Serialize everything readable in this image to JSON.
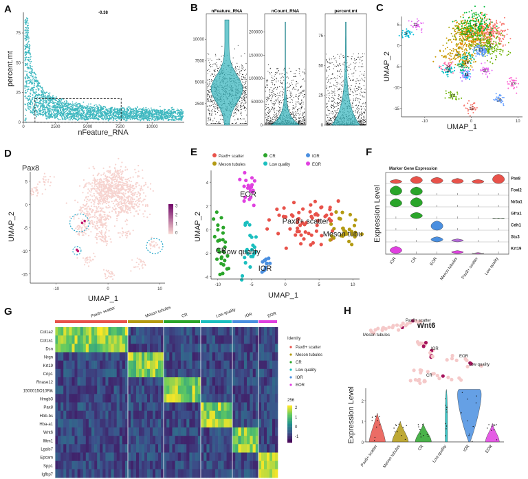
{
  "panels": {
    "A": "A",
    "B": "B",
    "C": "C",
    "D": "D",
    "E": "E",
    "F": "F",
    "G": "G",
    "H": "H"
  },
  "colors": {
    "teal": "#3fb8c0",
    "pax8_scatter": "#e8524a",
    "meson_tubules": "#b39a12",
    "cr": "#2aa52a",
    "low_quality": "#1bbfbf",
    "ior": "#4a8fe0",
    "eor": "#e040e0"
  },
  "chart_data": [
    {
      "panel": "A",
      "type": "scatter",
      "title": "-0.38",
      "xlabel": "nFeature_RNA",
      "ylabel": "percent.mt",
      "xticks": [
        "0",
        "2500",
        "5000",
        "7500",
        "10000"
      ],
      "yticks": [
        "0",
        "25",
        "50",
        "75"
      ],
      "xlim": [
        0,
        12500
      ],
      "ylim": [
        0,
        90
      ],
      "points": [
        [
          150,
          85
        ],
        [
          400,
          60
        ],
        [
          600,
          45
        ],
        [
          900,
          35
        ],
        [
          1200,
          28
        ],
        [
          1600,
          22
        ],
        [
          2100,
          18
        ],
        [
          2700,
          15
        ],
        [
          3400,
          13
        ],
        [
          4200,
          11
        ],
        [
          5200,
          9
        ],
        [
          6300,
          8
        ],
        [
          7500,
          7
        ],
        [
          8800,
          6
        ],
        [
          10000,
          5
        ],
        [
          11200,
          4
        ],
        [
          12300,
          3
        ]
      ],
      "annotation": "dashed selection box"
    },
    {
      "panel": "B",
      "type": "violin",
      "series": [
        {
          "name": "nFeature_RNA",
          "yticks": [
            "2500",
            "5000",
            "7500",
            "10000"
          ],
          "ylim": [
            0,
            12500
          ]
        },
        {
          "name": "nCount_RNA",
          "yticks": [
            "0",
            "50000",
            "100000",
            "150000",
            "200000"
          ],
          "ylim": [
            0,
            230000
          ]
        },
        {
          "name": "percent.mt",
          "yticks": [
            "0",
            "25",
            "50",
            "75"
          ],
          "ylim": [
            0,
            90
          ]
        }
      ]
    },
    {
      "panel": "C",
      "type": "scatter",
      "xlabel": "UMAP_1",
      "ylabel": "UMAP_2",
      "xticks": [
        "-10",
        "0",
        "10"
      ],
      "yticks": [
        "-15",
        "-10",
        "-5",
        "0",
        "5"
      ],
      "xlim": [
        -15,
        11
      ],
      "ylim": [
        -17,
        7
      ],
      "clusters": [
        {
          "label": "0",
          "x": 4,
          "y": 3
        },
        {
          "label": "1",
          "x": 0,
          "y": 3
        },
        {
          "label": "2",
          "x": -3,
          "y": -2
        },
        {
          "label": "3",
          "x": -1,
          "y": 3
        },
        {
          "label": "4",
          "x": 4,
          "y": 0
        },
        {
          "label": "5",
          "x": 1,
          "y": 5
        },
        {
          "label": "6",
          "x": -2,
          "y": -5
        },
        {
          "label": "7",
          "x": -1,
          "y": -3
        },
        {
          "label": "8",
          "x": -14,
          "y": 3
        },
        {
          "label": "9",
          "x": -1,
          "y": -7
        },
        {
          "label": "10",
          "x": 2,
          "y": -1
        },
        {
          "label": "11",
          "x": -1,
          "y": -7
        },
        {
          "label": "12",
          "x": -12,
          "y": 5
        },
        {
          "label": "13",
          "x": 9,
          "y": -9
        },
        {
          "label": "14",
          "x": -5,
          "y": -5
        },
        {
          "label": "15",
          "x": 0,
          "y": -15
        },
        {
          "label": "16",
          "x": -1,
          "y": -4
        },
        {
          "label": "17",
          "x": -4,
          "y": -12
        },
        {
          "label": "18",
          "x": -5,
          "y": -6
        },
        {
          "label": "19",
          "x": 6,
          "y": -13
        },
        {
          "label": "20",
          "x": 3,
          "y": -6
        }
      ]
    },
    {
      "panel": "D",
      "type": "scatter",
      "title": "Pax8",
      "xlabel": "UMAP_1",
      "ylabel": "UMAP_2",
      "xticks": [
        "-10",
        "0",
        "10"
      ],
      "yticks": [
        "-15",
        "-10",
        "-5",
        "0",
        "5"
      ],
      "xlim": [
        -15,
        11
      ],
      "ylim": [
        -17,
        7
      ],
      "colorbar": {
        "ticks": [
          "0",
          "1",
          "2",
          "3"
        ],
        "range": [
          0,
          3
        ]
      }
    },
    {
      "panel": "E",
      "type": "scatter",
      "xlabel": "UMAP_1",
      "ylabel": "UMAP_2",
      "xticks": [
        "-10",
        "-5",
        "0",
        "5",
        "10"
      ],
      "yticks": [
        "-4",
        "-2",
        "0",
        "2",
        "4"
      ],
      "xlim": [
        -11,
        11
      ],
      "ylim": [
        -4.2,
        5
      ],
      "legend": [
        "Pax8+ scatter",
        "CR",
        "IOR",
        "Meson tubules",
        "Low quality",
        "EOR"
      ],
      "labels": [
        {
          "text": "EOR",
          "x": -5.5,
          "y": 2.8
        },
        {
          "text": "Pax8+ scatter",
          "x": 3,
          "y": 0.5
        },
        {
          "text": "Meson tubu",
          "x": 8.5,
          "y": -0.6
        },
        {
          "text": "CR",
          "x": -9.5,
          "y": -2
        },
        {
          "text": "Low quality",
          "x": -6.5,
          "y": -2.1
        },
        {
          "text": "IOR",
          "x": -3,
          "y": -3.5
        }
      ],
      "groups": [
        {
          "name": "EOR",
          "cx": -5.5,
          "cy": 3.4,
          "rx": 0.5,
          "ry": 0.8,
          "n": 22
        },
        {
          "name": "Pax8+ scatter",
          "cx": 3,
          "cy": 0.6,
          "rx": 2.5,
          "ry": 1,
          "n": 60
        },
        {
          "name": "Meson tubules",
          "cx": 8.5,
          "cy": 0.1,
          "rx": 1.7,
          "ry": 0.7,
          "n": 30
        },
        {
          "name": "CR",
          "cx": -9.5,
          "cy": -1.5,
          "rx": 0.6,
          "ry": 1.4,
          "n": 28
        },
        {
          "name": "Low quality",
          "cx": -5.6,
          "cy": -1.5,
          "rx": 0.7,
          "ry": 1.1,
          "n": 22
        },
        {
          "name": "IOR",
          "cx": -3,
          "cy": -3.1,
          "rx": 0.4,
          "ry": 0.4,
          "n": 12
        }
      ]
    },
    {
      "panel": "F",
      "type": "violin",
      "title": "Marker Gene Expression",
      "ylabel": "Expression Level",
      "categories": [
        "IOR",
        "CR",
        "EOR",
        "Meson tubules",
        "Pax8+ scatter",
        "Low quality"
      ],
      "genes": [
        "Pax8",
        "Foxl2",
        "Nr5a1",
        "Gfra1",
        "Cdh1",
        "Stx3",
        "Krt19"
      ]
    },
    {
      "panel": "G",
      "type": "heatmap",
      "groups": [
        "Pax8+ scatter",
        "Meson tubules",
        "CR",
        "Low quality",
        "IOR",
        "EOR"
      ],
      "genes": [
        "Col1a2",
        "Col1a1",
        "Dcn",
        "Nrgn",
        "Krt19",
        "Crip1",
        "Rnase12",
        "1500015O10Rik",
        "Hmgb3",
        "Pax8",
        "Hbb-bs",
        "Hba-a1",
        "Wnt6",
        "Ifitm1",
        "Lgals7",
        "Epcam",
        "Spp1",
        "Igfbp7"
      ],
      "legend_title": "Identity",
      "legend_items": [
        "Pax8+ scatter",
        "Meson tubules",
        "CR",
        "Low quality",
        "IOR",
        "EOR"
      ],
      "colorbar_title": "256",
      "colorbar_ticks": [
        "2",
        "1",
        "0",
        "-1"
      ]
    },
    {
      "panel": "H",
      "type": "violin",
      "title": "Wnt6",
      "ylabel": "Expression Level",
      "categories": [
        "Pax8+ scatter",
        "Meson tubules",
        "CR",
        "Low quality",
        "IOR",
        "EOR"
      ],
      "yticks": [
        "0",
        "1",
        "2"
      ],
      "ylim": [
        0,
        2.6
      ],
      "umap_labels": [
        "Pax8+ scatter",
        "Meson tubules",
        "IOR",
        "EOR",
        "Low quality",
        "CR"
      ]
    }
  ]
}
